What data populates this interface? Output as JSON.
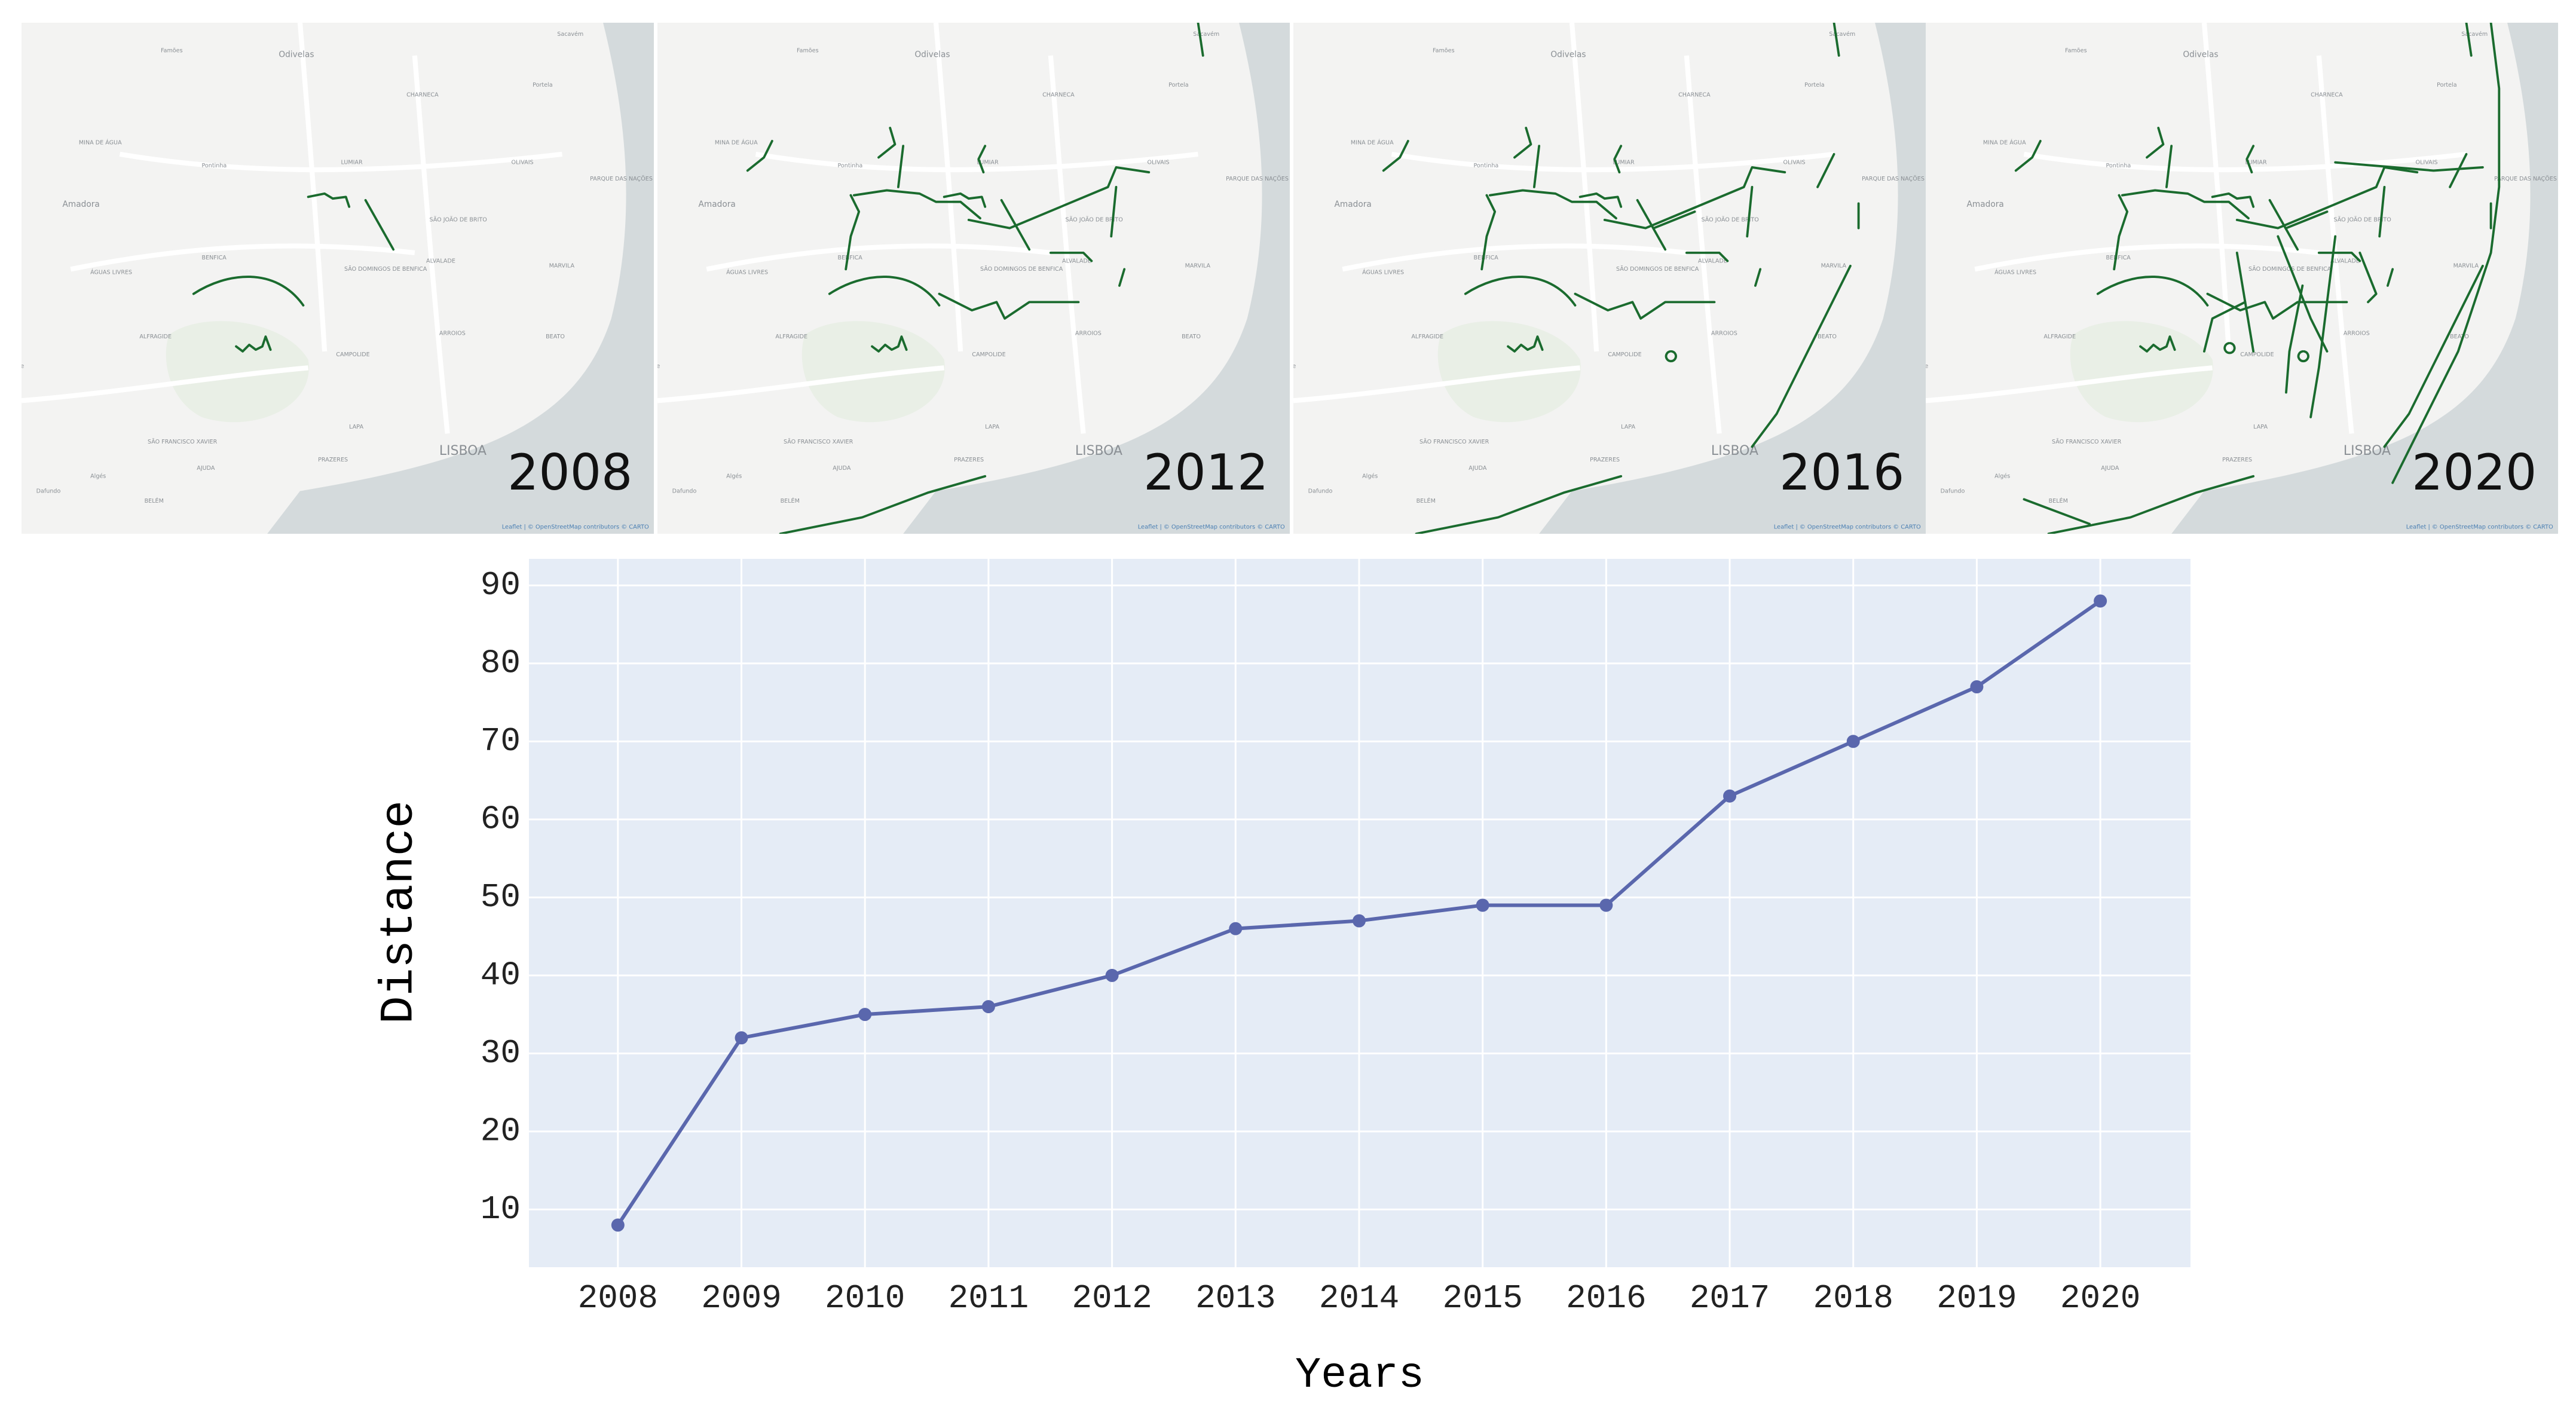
{
  "maps": {
    "panels": [
      {
        "year": "2008"
      },
      {
        "year": "2012"
      },
      {
        "year": "2016"
      },
      {
        "year": "2020"
      }
    ],
    "place_names": [
      "Famões",
      "Odivelas",
      "Sacavém",
      "CHARNECA",
      "Portela",
      "MINA DE ÁGUA",
      "Pontinha",
      "LUMIAR",
      "OLIVAIS",
      "Amadora",
      "PARQUE DAS NAÇÕES",
      "SÃO JOÃO DE BRITO",
      "ALVALADE",
      "BENFICA",
      "SÃO DOMINGOS DE BENFICA",
      "ÁGUAS LIVRES",
      "MARVILA",
      "ALFRAGIDE",
      "CAMPOLIDE",
      "ARROIOS",
      "BEATO",
      "SÃO FRANCISCO XAVIER",
      "LAPA",
      "PRAZERES",
      "LISBOA",
      "Algés",
      "AJUDA",
      "BELÉM",
      "Dafundo",
      "axide"
    ],
    "attribution": "Leaflet | © OpenStreetMap contributors © CARTO"
  },
  "chart_data": {
    "type": "line",
    "x_label": "Years",
    "y_label": "Distance",
    "x": [
      2008,
      2009,
      2010,
      2011,
      2012,
      2013,
      2014,
      2015,
      2016,
      2017,
      2018,
      2019,
      2020
    ],
    "values": [
      8,
      32,
      35,
      36,
      40,
      46,
      47,
      49,
      49,
      63,
      70,
      77,
      88
    ],
    "color": "#5a67ad",
    "xlim": [
      2007.28,
      2020.73
    ],
    "xticks": [
      2008,
      2009,
      2010,
      2011,
      2012,
      2013,
      2014,
      2015,
      2016,
      2017,
      2018,
      2019,
      2020
    ],
    "ylim": [
      2.6,
      93.4
    ],
    "yticks": [
      10,
      20,
      30,
      40,
      50,
      60,
      70,
      80,
      90
    ],
    "grid": true
  }
}
